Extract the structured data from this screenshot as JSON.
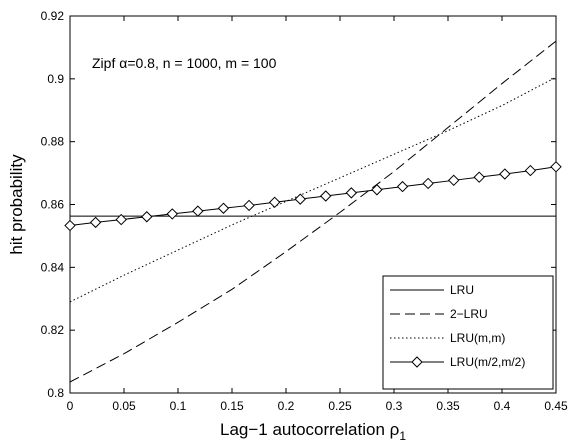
{
  "chart_data": {
    "type": "line",
    "xlabel_prefix": "Lag−1 autocorrelation ρ",
    "xlabel_subscript": "1",
    "ylabel": "hit probability",
    "annotation": "Zipf α=0.8, n = 1000, m = 100",
    "xlim": [
      0,
      0.45
    ],
    "ylim": [
      0.8,
      0.92
    ],
    "xticks": [
      0,
      0.05,
      0.1,
      0.15,
      0.2,
      0.25,
      0.3,
      0.35,
      0.4,
      0.45
    ],
    "xtick_labels": [
      "0",
      "0.05",
      "0.1",
      "0.15",
      "0.2",
      "0.25",
      "0.3",
      "0.35",
      "0.4",
      "0.45"
    ],
    "yticks": [
      0.8,
      0.82,
      0.84,
      0.86,
      0.88,
      0.9,
      0.92
    ],
    "ytick_labels": [
      "0.8",
      "0.82",
      "0.84",
      "0.86",
      "0.88",
      "0.9",
      "0.92"
    ],
    "grid": false,
    "legend_position": "bottom-right",
    "series": [
      {
        "name": "LRU",
        "style": "solid",
        "marker": "none",
        "x": [
          0,
          0.45
        ],
        "y": [
          0.8563,
          0.8563
        ]
      },
      {
        "name": "2−LRU",
        "style": "dashed",
        "marker": "none",
        "x": [
          0,
          0.05,
          0.1,
          0.15,
          0.2,
          0.25,
          0.3,
          0.35,
          0.4,
          0.45
        ],
        "y": [
          0.8035,
          0.8125,
          0.8225,
          0.833,
          0.845,
          0.8575,
          0.8705,
          0.8845,
          0.8985,
          0.912
        ]
      },
      {
        "name": "LRU(m,m)",
        "style": "dotted",
        "marker": "none",
        "x": [
          0,
          0.05,
          0.1,
          0.15,
          0.2,
          0.25,
          0.3,
          0.35,
          0.4,
          0.45
        ],
        "y": [
          0.829,
          0.8375,
          0.8455,
          0.8535,
          0.861,
          0.8685,
          0.876,
          0.8835,
          0.8915,
          0.9005
        ]
      },
      {
        "name": "LRU(m/2,m/2)",
        "style": "solid",
        "marker": "diamond",
        "x": [
          0,
          0.0237,
          0.0474,
          0.0711,
          0.0947,
          0.1184,
          0.1421,
          0.1658,
          0.1895,
          0.2132,
          0.2368,
          0.2605,
          0.2842,
          0.3079,
          0.3316,
          0.3553,
          0.3789,
          0.4026,
          0.4263,
          0.45
        ],
        "y": [
          0.8533,
          0.8543,
          0.8552,
          0.8561,
          0.857,
          0.8579,
          0.8588,
          0.8597,
          0.8607,
          0.8617,
          0.8627,
          0.8637,
          0.8647,
          0.8657,
          0.8667,
          0.8677,
          0.8687,
          0.8697,
          0.8708,
          0.872
        ]
      }
    ]
  }
}
